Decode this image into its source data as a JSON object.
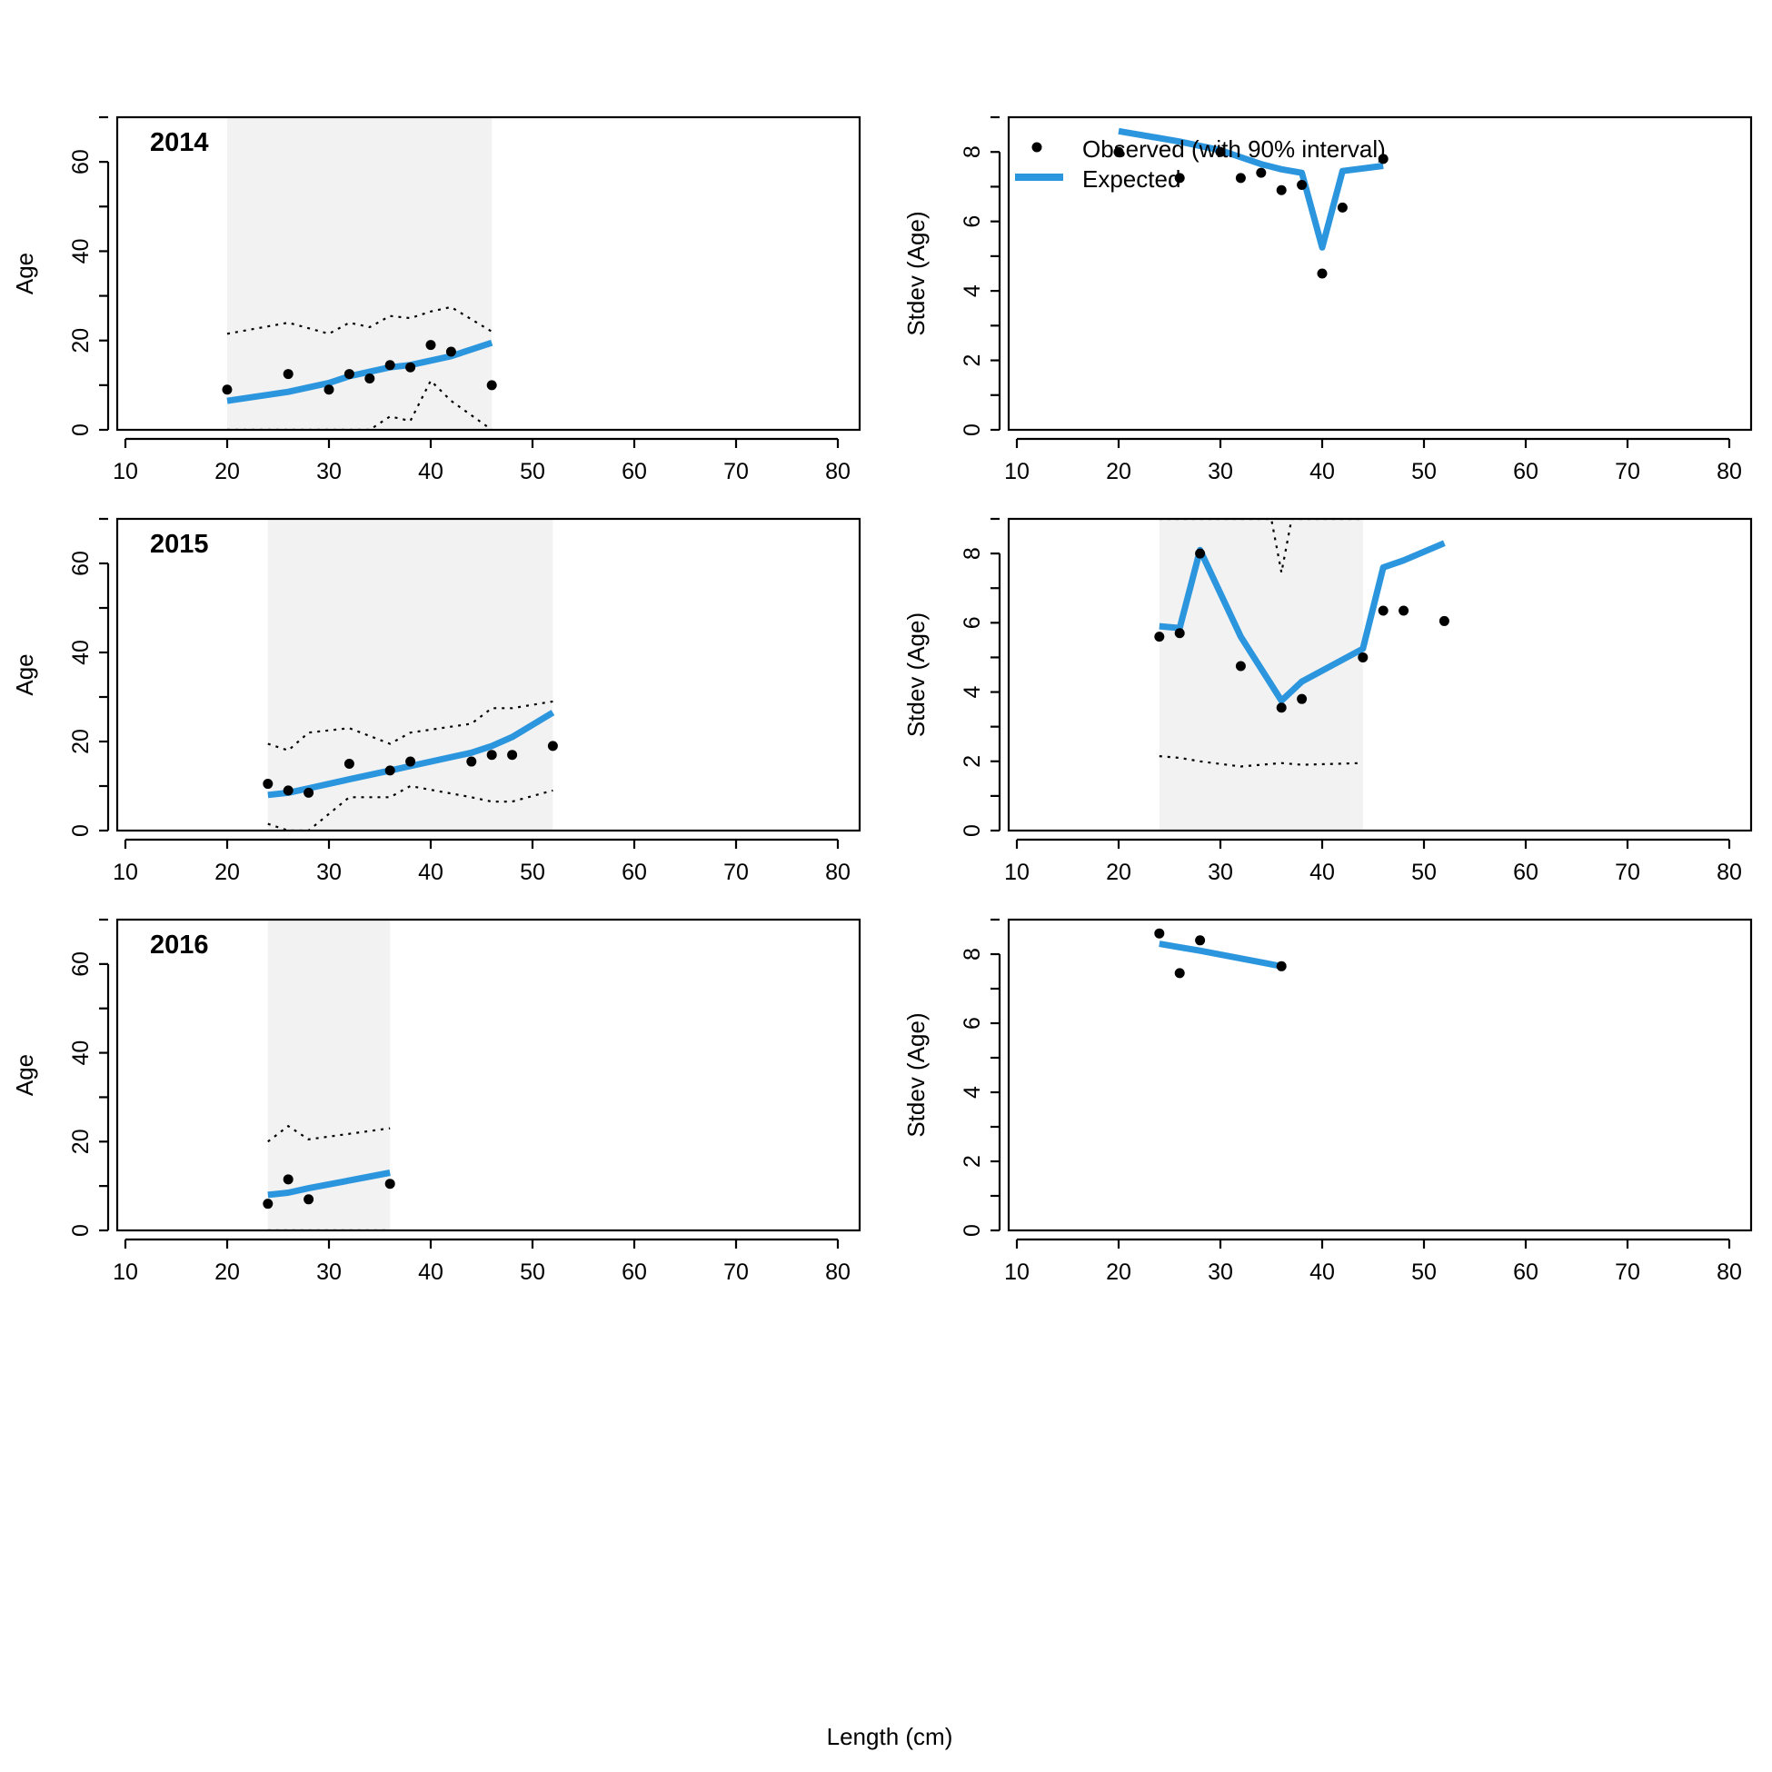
{
  "figure": {
    "xlabel": "Length (cm)",
    "colors": {
      "expected": "#2b95de",
      "interval_fill": "#f2f2f2",
      "points": "#000000",
      "interval_line": "#000000"
    }
  },
  "legend": {
    "observed_label": "Observed (with 90% interval)",
    "expected_label": "Expected"
  },
  "chart_data": [
    {
      "type": "line",
      "panel": "mean",
      "row": 0,
      "title": "2014",
      "xlabel": "",
      "ylabel": "Age",
      "xlim": [
        10,
        80
      ],
      "ylim": [
        0,
        70
      ],
      "xticks": [
        10,
        20,
        30,
        40,
        50,
        60,
        70,
        80
      ],
      "yticks": [
        0,
        20,
        40,
        60
      ],
      "observed": {
        "x": [
          20,
          26,
          30,
          32,
          34,
          36,
          38,
          40,
          42,
          46
        ],
        "y": [
          9,
          12.5,
          9,
          12.5,
          11.5,
          14.5,
          14,
          19,
          17.5,
          10
        ]
      },
      "expected": {
        "x": [
          20,
          26,
          30,
          32,
          34,
          36,
          38,
          40,
          42,
          46
        ],
        "y": [
          6.5,
          8.5,
          10.5,
          12,
          13,
          14,
          14.5,
          15.5,
          16.5,
          19.5
        ]
      },
      "interval_upper": {
        "x": [
          20,
          26,
          30,
          32,
          34,
          36,
          38,
          40,
          42,
          46
        ],
        "y": [
          21.5,
          24,
          21.5,
          24,
          23,
          25.5,
          25,
          26.5,
          27.5,
          22
        ]
      },
      "interval_lower": {
        "x": [
          20,
          26,
          30,
          32,
          34,
          36,
          38,
          40,
          42,
          46
        ],
        "y": [
          0,
          0,
          0,
          0,
          0,
          3,
          2,
          11,
          6.5,
          0
        ]
      }
    },
    {
      "type": "line",
      "panel": "stdev",
      "row": 0,
      "xlabel": "",
      "ylabel": "Stdev (Age)",
      "xlim": [
        10,
        80
      ],
      "ylim": [
        0,
        9
      ],
      "xticks": [
        10,
        20,
        30,
        40,
        50,
        60,
        70,
        80
      ],
      "yticks": [
        0,
        2,
        4,
        6,
        8
      ],
      "observed": {
        "x": [
          20,
          26,
          30,
          32,
          34,
          36,
          38,
          40,
          42,
          46
        ],
        "y": [
          8.0,
          7.25,
          8.0,
          7.25,
          7.4,
          6.9,
          7.05,
          4.5,
          6.4,
          7.8
        ]
      },
      "expected": {
        "x": [
          20,
          26,
          30,
          32,
          34,
          36,
          38,
          40,
          42,
          46
        ],
        "y": [
          8.6,
          8.3,
          8.05,
          7.85,
          7.65,
          7.5,
          7.4,
          5.25,
          7.45,
          7.6
        ]
      }
    },
    {
      "type": "line",
      "panel": "mean",
      "row": 1,
      "title": "2015",
      "xlabel": "",
      "ylabel": "Age",
      "xlim": [
        10,
        80
      ],
      "ylim": [
        0,
        70
      ],
      "xticks": [
        10,
        20,
        30,
        40,
        50,
        60,
        70,
        80
      ],
      "yticks": [
        0,
        20,
        40,
        60
      ],
      "observed": {
        "x": [
          24,
          26,
          28,
          32,
          36,
          38,
          44,
          46,
          48,
          52
        ],
        "y": [
          10.5,
          9,
          8.5,
          15,
          13.5,
          15.5,
          15.5,
          17,
          17,
          19
        ]
      },
      "expected": {
        "x": [
          24,
          26,
          28,
          32,
          36,
          38,
          44,
          46,
          48,
          52
        ],
        "y": [
          8,
          8.5,
          9.5,
          11.5,
          13.5,
          14.5,
          17.5,
          19,
          21,
          26.5
        ]
      },
      "interval_upper": {
        "x": [
          24,
          26,
          28,
          32,
          36,
          38,
          44,
          46,
          48,
          52
        ],
        "y": [
          19.5,
          18,
          22,
          23,
          19.5,
          22,
          24,
          27.5,
          27.5,
          29
        ]
      },
      "interval_lower": {
        "x": [
          24,
          26,
          28,
          32,
          36,
          38,
          44,
          46,
          48,
          52
        ],
        "y": [
          1.5,
          0,
          0,
          7.5,
          7.5,
          10,
          7.5,
          6.5,
          6.5,
          9
        ]
      }
    },
    {
      "type": "line",
      "panel": "stdev",
      "row": 1,
      "xlabel": "",
      "ylabel": "Stdev (Age)",
      "xlim": [
        10,
        80
      ],
      "ylim": [
        0,
        9
      ],
      "xticks": [
        10,
        20,
        30,
        40,
        50,
        60,
        70,
        80
      ],
      "yticks": [
        0,
        2,
        4,
        6,
        8
      ],
      "observed": {
        "x": [
          24,
          26,
          28,
          32,
          36,
          38,
          44,
          46,
          48,
          52
        ],
        "y": [
          5.6,
          5.7,
          8.0,
          4.75,
          3.55,
          3.8,
          5.0,
          6.35,
          6.35,
          6.05
        ]
      },
      "expected": {
        "x": [
          24,
          26,
          28,
          32,
          36,
          38,
          44,
          46,
          48,
          52
        ],
        "y": [
          5.9,
          5.85,
          8.1,
          5.6,
          3.75,
          4.3,
          5.25,
          7.6,
          7.8,
          8.3
        ]
      },
      "interval_upper": {
        "x": [
          24,
          35,
          36,
          37,
          44
        ],
        "y": [
          9,
          9,
          7.45,
          9,
          9
        ]
      },
      "interval_lower": {
        "x": [
          24,
          26,
          28,
          32,
          36,
          38,
          44
        ],
        "y": [
          2.15,
          2.1,
          2.0,
          1.85,
          1.95,
          1.9,
          1.95
        ]
      }
    },
    {
      "type": "line",
      "panel": "mean",
      "row": 2,
      "title": "2016",
      "xlabel": "",
      "ylabel": "Age",
      "xlim": [
        10,
        80
      ],
      "ylim": [
        0,
        70
      ],
      "xticks": [
        10,
        20,
        30,
        40,
        50,
        60,
        70,
        80
      ],
      "yticks": [
        0,
        20,
        40,
        60
      ],
      "observed": {
        "x": [
          24,
          26,
          28,
          36
        ],
        "y": [
          6,
          11.5,
          7,
          10.5
        ]
      },
      "expected": {
        "x": [
          24,
          26,
          28,
          36
        ],
        "y": [
          8,
          8.5,
          9.5,
          13
        ]
      },
      "interval_upper": {
        "x": [
          24,
          26,
          28,
          36
        ],
        "y": [
          20,
          23.5,
          20.5,
          23
        ]
      },
      "interval_lower": {
        "x": [
          24,
          26,
          28,
          36
        ],
        "y": [
          0,
          0,
          0,
          0
        ]
      }
    },
    {
      "type": "line",
      "panel": "stdev",
      "row": 2,
      "xlabel": "",
      "ylabel": "Stdev (Age)",
      "xlim": [
        10,
        80
      ],
      "ylim": [
        0,
        9
      ],
      "xticks": [
        10,
        20,
        30,
        40,
        50,
        60,
        70,
        80
      ],
      "yticks": [
        0,
        2,
        4,
        6,
        8
      ],
      "observed": {
        "x": [
          24,
          26,
          28,
          36
        ],
        "y": [
          8.6,
          7.45,
          8.4,
          7.65
        ]
      },
      "expected": {
        "x": [
          24,
          26,
          28,
          36
        ],
        "y": [
          8.3,
          8.2,
          8.1,
          7.65
        ]
      }
    }
  ]
}
